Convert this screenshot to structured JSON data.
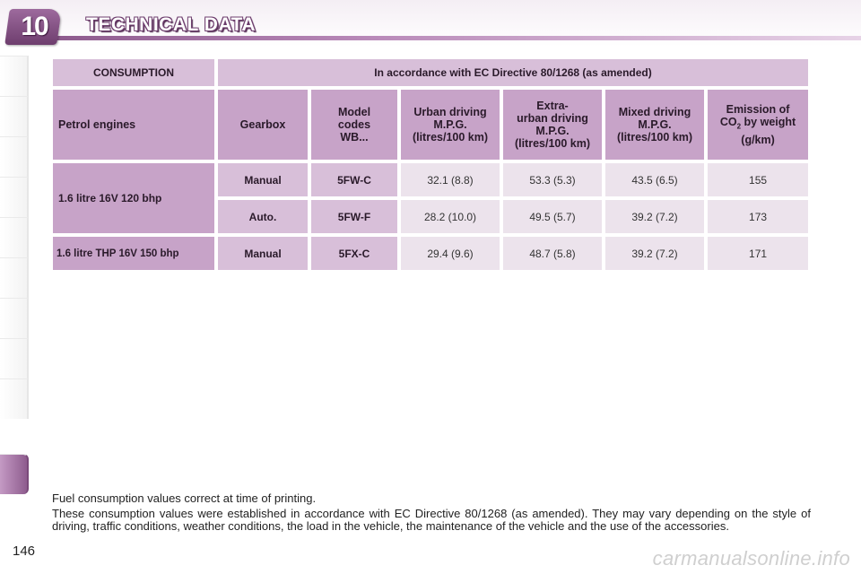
{
  "header": {
    "chapter_number": "10",
    "title": "TECHNICAL DATA"
  },
  "table": {
    "top_row": {
      "consumption": "CONSUMPTION",
      "directive": "In accordance with EC Directive 80/1268 (as amended)"
    },
    "columns": {
      "engines": "Petrol engines",
      "gearbox": "Gearbox",
      "model_codes": [
        "Model",
        "codes",
        "WB..."
      ],
      "urban": [
        "Urban driving",
        "M.P.G.",
        "(litres/100 km)"
      ],
      "extra_urban": [
        "Extra-",
        "urban driving",
        "M.P.G.",
        "(litres/100 km)"
      ],
      "mixed": [
        "Mixed driving",
        "M.P.G.",
        "(litres/100 km)"
      ],
      "emission_line1": "Emission of",
      "emission_co": "CO",
      "emission_sub": "2",
      "emission_rest": " by weight",
      "emission_unit": "(g/km)"
    },
    "rows": [
      {
        "engine": "1.6 litre 16V 120 bhp",
        "gearbox": "Manual",
        "code": "5FW-C",
        "urban": "32.1 (8.8)",
        "extra_urban": "53.3 (5.3)",
        "mixed": "43.5 (6.5)",
        "co2": "155"
      },
      {
        "engine": "1.6 litre 16V 120 bhp",
        "gearbox": "Auto.",
        "code": "5FW-F",
        "urban": "28.2 (10.0)",
        "extra_urban": "49.5 (5.7)",
        "mixed": "39.2 (7.2)",
        "co2": "173"
      },
      {
        "engine": "1.6 litre THP 16V 150 bhp",
        "gearbox": "Manual",
        "code": "5FX-C",
        "urban": "29.4 (9.6)",
        "extra_urban": "48.7 (5.8)",
        "mixed": "39.2 (7.2)",
        "co2": "171"
      }
    ]
  },
  "notes": {
    "line1": "Fuel consumption values correct at time of printing.",
    "line2": "These consumption values were established in accordance with EC Directive 80/1268 (as amended). They may vary depending on the style of driving, traffic conditions, weather conditions, the load in the vehicle, the maintenance of the vehicle and the use of the accessories."
  },
  "page_number": "146",
  "watermark": "carmanualsonline.info",
  "colors": {
    "accent": "#8e5c8e",
    "header_cell": "#c7a3c8",
    "value_cell": "#ece3ec"
  }
}
